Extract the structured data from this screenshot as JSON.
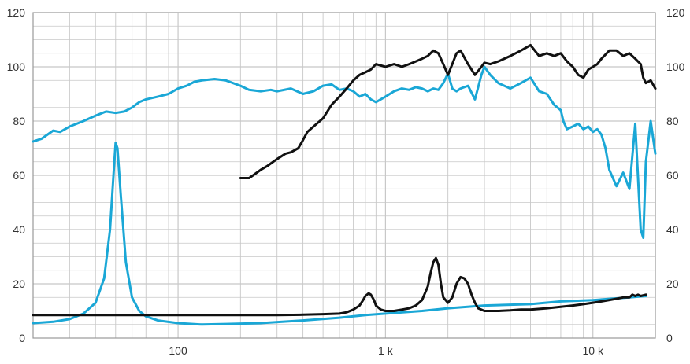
{
  "chart_data": {
    "type": "line",
    "title": "",
    "xlabel": "",
    "ylabel": "",
    "x_scale": "log",
    "xlim": [
      20,
      20000
    ],
    "ylim": [
      0,
      120
    ],
    "grid": true,
    "y_ticks": [
      0,
      20,
      40,
      60,
      80,
      100,
      120
    ],
    "x_tick_labels": [
      {
        "value": 100,
        "label": "100"
      },
      {
        "value": 1000,
        "label": "1 k"
      },
      {
        "value": 10000,
        "label": "10 k"
      }
    ],
    "colors": {
      "blue": "#1aa7d6",
      "black": "#111111",
      "grid": "#c8c8c8",
      "frame": "#999999"
    },
    "series": [
      {
        "color": "blue",
        "x": [
          20,
          22,
          25,
          27,
          30,
          35,
          40,
          45,
          50,
          55,
          60,
          65,
          70,
          80,
          90,
          100,
          110,
          120,
          130,
          150,
          170,
          200,
          220,
          250,
          280,
          300,
          350,
          400,
          450,
          500,
          550,
          600,
          650,
          700,
          750,
          800,
          850,
          900,
          1000,
          1100,
          1200,
          1300,
          1400,
          1500,
          1600,
          1700,
          1800,
          1900,
          2000,
          2100,
          2200,
          2300,
          2500,
          2700,
          2900,
          3000,
          3200,
          3500,
          4000,
          4500,
          5000,
          5500,
          6000,
          6500,
          7000,
          7200,
          7500,
          8000,
          8500,
          9000,
          9500,
          10000,
          10500,
          11000,
          11500,
          12000,
          13000,
          14000,
          15000,
          16000,
          17000,
          17500,
          18000,
          19000,
          20000
        ],
        "values": [
          72.5,
          73.5,
          76.5,
          76,
          78,
          80,
          82,
          83.5,
          83,
          83.5,
          85,
          87,
          88,
          89,
          90,
          92,
          93,
          94.5,
          95,
          95.5,
          95,
          93,
          91.5,
          91,
          91.5,
          91,
          92,
          90,
          91,
          93,
          93.5,
          91.5,
          92,
          91,
          89,
          90,
          88,
          87,
          89,
          91,
          92,
          91.5,
          92.5,
          92,
          91,
          92,
          91.5,
          94,
          97.5,
          92,
          91,
          92,
          93,
          88,
          97,
          100,
          97,
          94,
          92,
          94,
          96,
          91,
          90,
          86,
          84,
          80,
          77,
          78,
          79,
          77,
          78,
          76,
          77,
          75,
          70,
          62,
          56,
          61,
          55,
          79,
          40,
          37,
          65,
          80,
          68
        ]
      },
      {
        "color": "black",
        "x": [
          200,
          210,
          220,
          230,
          250,
          270,
          300,
          330,
          350,
          380,
          400,
          420,
          450,
          500,
          550,
          600,
          650,
          700,
          750,
          800,
          850,
          900,
          1000,
          1100,
          1200,
          1300,
          1400,
          1500,
          1600,
          1700,
          1800,
          1900,
          2000,
          2100,
          2200,
          2300,
          2500,
          2700,
          2900,
          3000,
          3200,
          3500,
          4000,
          4500,
          5000,
          5500,
          6000,
          6500,
          7000,
          7500,
          8000,
          8500,
          9000,
          9500,
          10000,
          10500,
          11000,
          12000,
          13000,
          14000,
          15000,
          16000,
          17000,
          17500,
          18000,
          19000,
          20000
        ],
        "values": [
          59,
          59,
          59,
          60,
          62,
          63.5,
          66,
          68,
          68.5,
          70,
          73,
          76,
          78,
          81,
          86,
          89,
          92,
          95,
          97,
          98,
          99,
          101,
          100,
          101,
          100,
          101,
          102,
          103,
          104,
          106,
          105,
          101,
          97,
          101,
          105,
          106,
          101,
          97,
          100,
          101.5,
          101,
          102,
          104,
          106,
          108,
          104,
          105,
          104,
          105,
          102,
          100,
          97,
          96,
          99,
          100,
          101,
          103,
          106,
          106,
          104,
          105,
          103,
          101,
          96,
          94,
          95,
          92
        ]
      },
      {
        "color": "blue",
        "x": [
          20,
          25,
          30,
          35,
          40,
          44,
          47,
          49,
          50,
          51,
          53,
          56,
          60,
          65,
          70,
          80,
          100,
          130,
          170,
          250,
          400,
          600,
          800,
          1000,
          1500,
          2000,
          3000,
          5000,
          7000,
          10000,
          15000,
          18000
        ],
        "values": [
          5.5,
          6,
          7,
          9,
          13,
          22,
          40,
          62,
          72,
          70,
          52,
          28,
          15,
          10,
          8,
          6.5,
          5.5,
          5,
          5.2,
          5.5,
          6.5,
          7.5,
          8.5,
          9,
          10,
          11,
          12,
          12.5,
          13.5,
          14,
          15,
          15.5
        ]
      },
      {
        "color": "black",
        "x": [
          20,
          50,
          100,
          200,
          300,
          400,
          500,
          600,
          650,
          700,
          750,
          780,
          800,
          830,
          850,
          880,
          900,
          950,
          1000,
          1100,
          1200,
          1300,
          1400,
          1500,
          1600,
          1650,
          1700,
          1750,
          1800,
          1850,
          1900,
          2000,
          2100,
          2200,
          2300,
          2400,
          2500,
          2600,
          2700,
          2800,
          3000,
          3500,
          4000,
          4500,
          5000,
          6000,
          7000,
          8000,
          9000,
          10000,
          11000,
          12000,
          13000,
          14000,
          15000,
          15500,
          16000,
          16500,
          17000,
          18000
        ],
        "values": [
          8.5,
          8.5,
          8.5,
          8.5,
          8.5,
          8.6,
          8.8,
          9,
          9.5,
          10.5,
          12,
          14,
          15.5,
          16.5,
          16,
          14,
          12,
          10.5,
          10,
          10,
          10.5,
          11,
          12,
          14,
          19,
          24,
          28,
          29.5,
          27,
          20,
          15,
          13,
          15,
          20,
          22.5,
          22,
          20,
          16,
          13,
          11,
          10,
          10,
          10.2,
          10.5,
          10.5,
          11,
          11.5,
          12,
          12.5,
          13,
          13.5,
          14,
          14.5,
          15,
          15,
          16,
          15.5,
          16,
          15.5,
          16
        ]
      }
    ]
  }
}
